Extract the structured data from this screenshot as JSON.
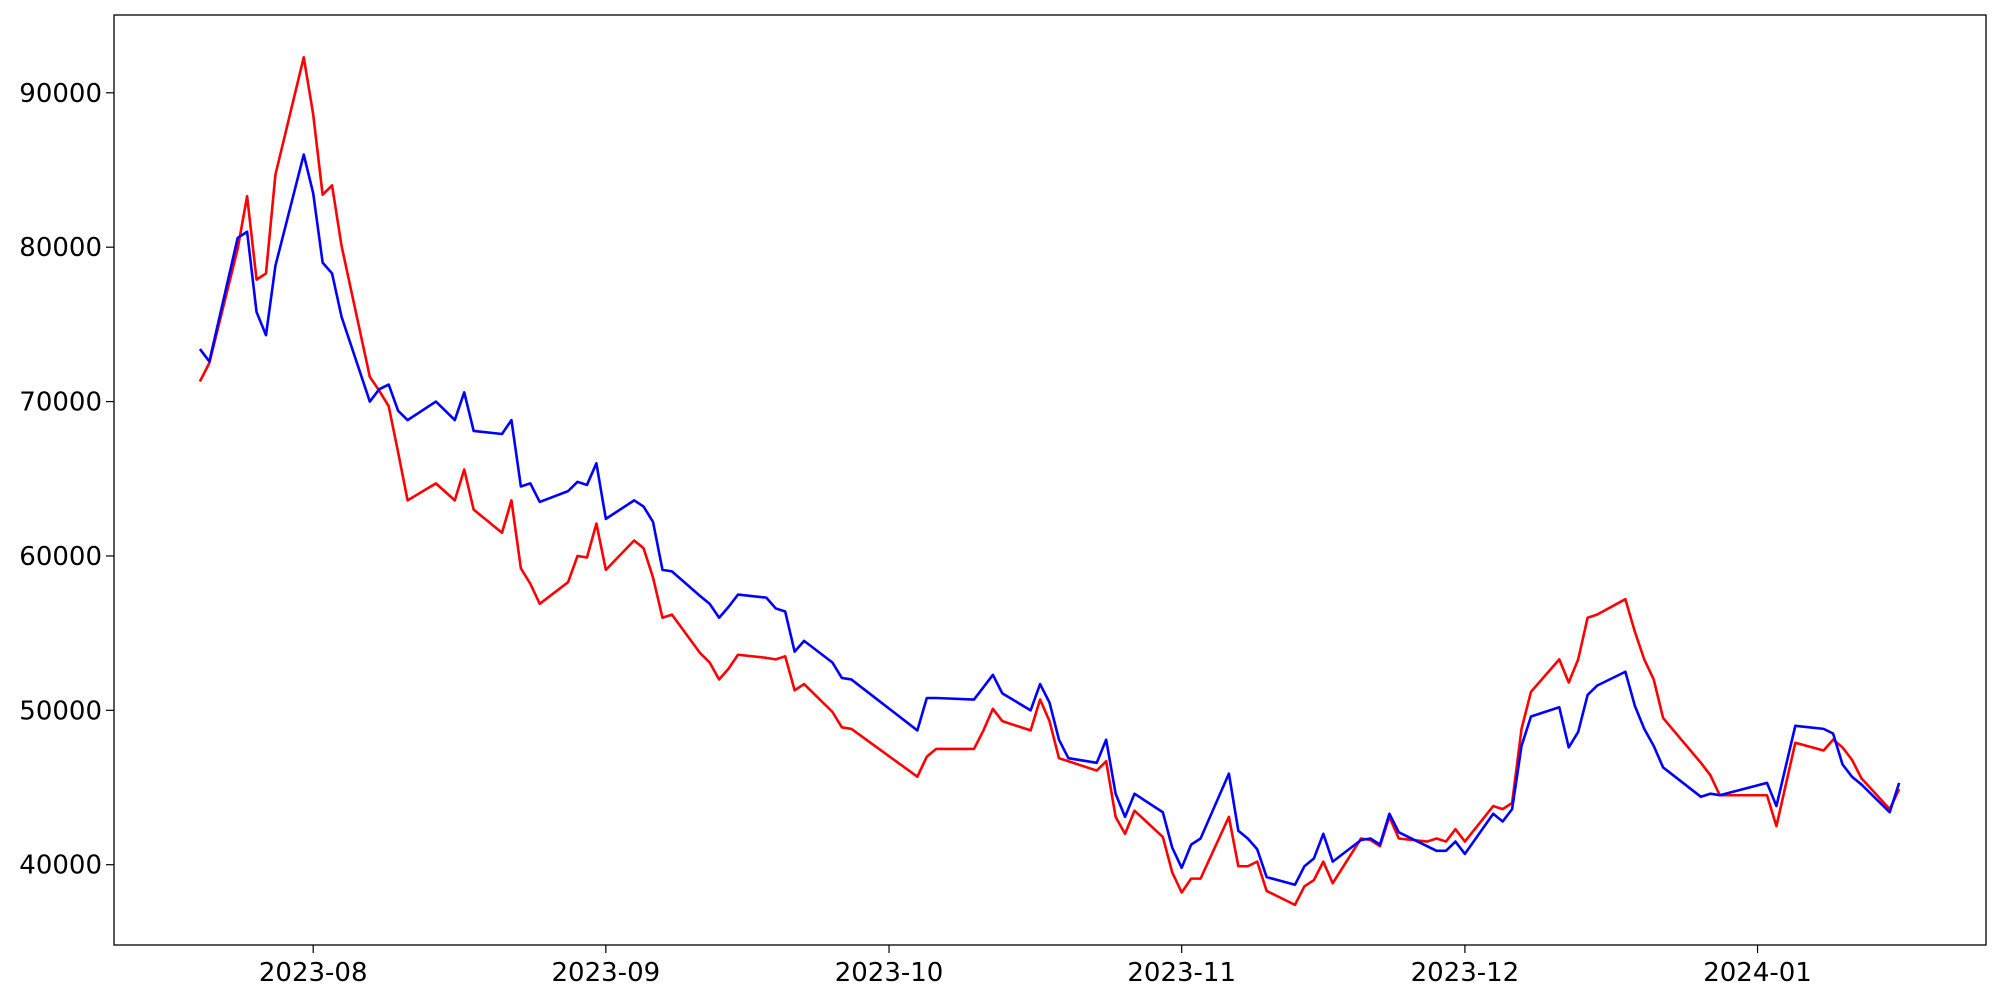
{
  "chart_data": {
    "type": "line",
    "x": [
      -12,
      -11,
      -8,
      -7,
      -6,
      -5,
      -4,
      -1,
      0,
      1,
      2,
      3,
      6,
      7,
      8,
      9,
      10,
      13,
      15,
      16,
      17,
      20,
      21,
      22,
      23,
      24,
      27,
      28,
      29,
      30,
      31,
      34,
      35,
      36,
      37,
      38,
      41,
      42,
      43,
      44,
      45,
      48,
      49,
      50,
      51,
      52,
      55,
      56,
      57,
      64,
      65,
      66,
      70,
      71,
      72,
      73,
      76,
      77,
      78,
      79,
      80,
      83,
      84,
      85,
      86,
      87,
      90,
      91,
      92,
      93,
      94,
      97,
      98,
      99,
      100,
      101,
      104,
      105,
      106,
      107,
      108,
      111,
      112,
      113,
      114,
      115,
      118,
      119,
      120,
      121,
      122,
      125,
      126,
      127,
      128,
      129,
      132,
      133,
      134,
      135,
      136,
      139,
      140,
      141,
      142,
      143,
      147,
      148,
      149,
      154,
      155,
      157,
      160,
      161,
      162,
      163,
      164,
      167,
      168
    ],
    "series": [
      {
        "color": "#ff0000",
        "values": [
          71300,
          72500,
          79900,
          83300,
          77900,
          78300,
          84700,
          92300,
          88600,
          83400,
          84000,
          80100,
          71600,
          70700,
          69700,
          66700,
          63600,
          64700,
          63600,
          65600,
          63000,
          61500,
          63600,
          59200,
          58200,
          56900,
          58300,
          60000,
          59900,
          62100,
          59100,
          61000,
          60500,
          58600,
          56000,
          56200,
          53700,
          53100,
          52000,
          52700,
          53600,
          53400,
          53300,
          53500,
          51300,
          51700,
          49900,
          48900,
          48800,
          45700,
          47000,
          47500,
          47500,
          48700,
          50100,
          49300,
          48700,
          50700,
          49300,
          46900,
          46700,
          46100,
          46700,
          43100,
          42000,
          43500,
          41800,
          39500,
          38200,
          39100,
          39100,
          43100,
          39900,
          39900,
          40200,
          38300,
          37400,
          38600,
          39000,
          40200,
          38800,
          41700,
          41600,
          41200,
          43100,
          41700,
          41500,
          41700,
          41500,
          42300,
          41500,
          43800,
          43600,
          44000,
          48800,
          51200,
          53300,
          51800,
          53300,
          56000,
          56200,
          57200,
          55100,
          53300,
          52000,
          49500,
          46600,
          45800,
          44500,
          44500,
          42500,
          47900,
          47400,
          48100,
          47600,
          46800,
          45600,
          43600,
          44900
        ]
      },
      {
        "color": "#0000ff",
        "values": [
          73400,
          72600,
          80600,
          81000,
          75800,
          74300,
          78800,
          86000,
          83500,
          79000,
          78300,
          75500,
          70000,
          70800,
          71100,
          69400,
          68800,
          70000,
          68800,
          70600,
          68100,
          67900,
          68800,
          64500,
          64700,
          63500,
          64200,
          64800,
          64600,
          66000,
          62400,
          63600,
          63200,
          62200,
          59100,
          59000,
          57400,
          56900,
          56000,
          56700,
          57500,
          57300,
          56600,
          56400,
          53800,
          54500,
          53100,
          52100,
          52000,
          48700,
          50800,
          50800,
          50700,
          51500,
          52300,
          51100,
          50000,
          51700,
          50500,
          48100,
          46900,
          46600,
          48100,
          44600,
          43100,
          44600,
          43400,
          41100,
          39800,
          41300,
          41700,
          45900,
          42200,
          41700,
          41000,
          39200,
          38700,
          39900,
          40400,
          42000,
          40200,
          41600,
          41700,
          41300,
          43300,
          42100,
          41200,
          40900,
          40900,
          41500,
          40700,
          43300,
          42800,
          43600,
          47700,
          49600,
          50200,
          47600,
          48600,
          51000,
          51600,
          52500,
          50300,
          48800,
          47700,
          46300,
          44400,
          44600,
          44500,
          45300,
          43800,
          49000,
          48800,
          48500,
          46500,
          45700,
          45200,
          43400,
          45300
        ]
      }
    ],
    "xlim": [
      -21.1,
      177.2
    ],
    "xticks": [
      {
        "value": 0,
        "label": "2023-08"
      },
      {
        "value": 31,
        "label": "2023-09"
      },
      {
        "value": 61,
        "label": "2023-10"
      },
      {
        "value": 92,
        "label": "2023-11"
      },
      {
        "value": 122,
        "label": "2023-12"
      },
      {
        "value": 153,
        "label": "2024-01"
      }
    ],
    "ylim": [
      34800,
      95040
    ],
    "yticks": [
      40000,
      50000,
      60000,
      70000,
      80000,
      90000
    ],
    "grid": false
  }
}
